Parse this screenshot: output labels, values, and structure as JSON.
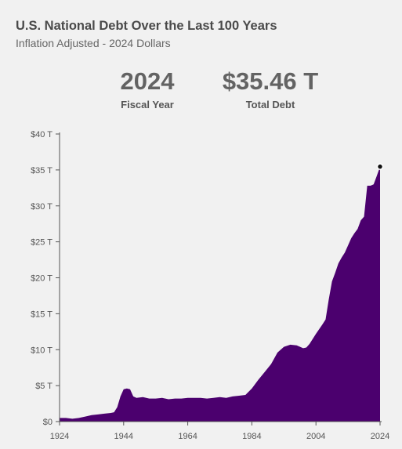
{
  "header": {
    "title": "U.S. National Debt Over the Last 100 Years",
    "subtitle": "Inflation Adjusted - 2024 Dollars"
  },
  "stats": {
    "year_value": "2024",
    "year_label": "Fiscal Year",
    "debt_value": "$35.46 T",
    "debt_label": "Total Debt"
  },
  "chart_data": {
    "type": "area",
    "ylim": [
      0,
      40
    ],
    "xlim": [
      1924,
      2024
    ],
    "y_ticks": [
      0,
      5,
      10,
      15,
      20,
      25,
      30,
      35,
      40
    ],
    "y_tick_labels": [
      "$0",
      "$5 T",
      "$10 T",
      "$15 T",
      "$20 T",
      "$25 T",
      "$30 T",
      "$35 T",
      "$40 T"
    ],
    "x_ticks": [
      1924,
      1944,
      1964,
      1984,
      2004,
      2024
    ],
    "x_tick_labels": [
      "1924",
      "1944",
      "1964",
      "1984",
      "2004",
      "2024"
    ],
    "color": "#4b006e",
    "highlight": {
      "x": 2024,
      "y": 35.46
    },
    "x": [
      1924,
      1926,
      1928,
      1930,
      1932,
      1934,
      1936,
      1938,
      1940,
      1941,
      1942,
      1943,
      1944,
      1945,
      1946,
      1947,
      1948,
      1950,
      1952,
      1954,
      1956,
      1958,
      1960,
      1962,
      1964,
      1966,
      1968,
      1970,
      1972,
      1974,
      1976,
      1978,
      1980,
      1982,
      1984,
      1986,
      1988,
      1990,
      1992,
      1994,
      1996,
      1998,
      2000,
      2001,
      2002,
      2004,
      2006,
      2007,
      2008,
      2009,
      2010,
      2011,
      2012,
      2013,
      2014,
      2015,
      2016,
      2017,
      2018,
      2019,
      2020,
      2021,
      2022,
      2023,
      2024
    ],
    "y": [
      0.5,
      0.5,
      0.4,
      0.5,
      0.7,
      0.9,
      1.0,
      1.1,
      1.2,
      1.3,
      2.0,
      3.5,
      4.5,
      4.6,
      4.5,
      3.5,
      3.3,
      3.4,
      3.2,
      3.2,
      3.3,
      3.1,
      3.2,
      3.2,
      3.3,
      3.3,
      3.3,
      3.2,
      3.3,
      3.4,
      3.3,
      3.5,
      3.6,
      3.7,
      4.6,
      5.8,
      6.9,
      8.0,
      9.6,
      10.4,
      10.7,
      10.6,
      10.2,
      10.3,
      10.8,
      12.2,
      13.5,
      14.2,
      17.0,
      19.5,
      20.7,
      22.0,
      22.8,
      23.5,
      24.5,
      25.5,
      26.2,
      26.8,
      28.0,
      28.5,
      32.8,
      32.8,
      33.0,
      34.2,
      35.46
    ]
  }
}
